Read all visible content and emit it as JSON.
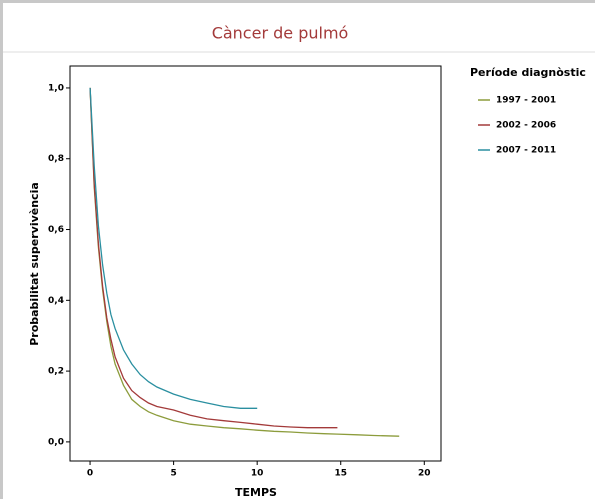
{
  "chart_data": {
    "type": "line",
    "title": "Càncer de pulmó",
    "x_label": "TEMPS",
    "y_label": "Probabilitat supervivència",
    "legend_title": "Període diagnòstic",
    "x": [
      0,
      0.25,
      0.5,
      0.75,
      1,
      1.25,
      1.5,
      2,
      2.5,
      3,
      3.5,
      4,
      5,
      6,
      7,
      8,
      9,
      10,
      11,
      12,
      13,
      14,
      14.8,
      16,
      17,
      18.5
    ],
    "series": [
      {
        "name": "1997 - 2001",
        "color": "#8c9c3c",
        "values": [
          1.0,
          0.72,
          0.55,
          0.43,
          0.34,
          0.27,
          0.22,
          0.16,
          0.12,
          0.1,
          0.085,
          0.075,
          0.06,
          0.05,
          0.045,
          0.04,
          0.037,
          0.033,
          0.03,
          0.028,
          0.025,
          0.023,
          0.022,
          0.02,
          0.018,
          0.016
        ]
      },
      {
        "name": "2002 - 2006",
        "color": "#a33a3a",
        "values": [
          1.0,
          0.73,
          0.56,
          0.44,
          0.35,
          0.29,
          0.24,
          0.18,
          0.145,
          0.125,
          0.11,
          0.1,
          0.09,
          0.075,
          0.065,
          0.06,
          0.055,
          0.05,
          0.045,
          0.042,
          0.04,
          0.04,
          0.04,
          null,
          null,
          null
        ]
      },
      {
        "name": "2007 - 2011",
        "color": "#2a8fa0",
        "values": [
          1.0,
          0.78,
          0.61,
          0.5,
          0.42,
          0.36,
          0.32,
          0.26,
          0.22,
          0.19,
          0.17,
          0.155,
          0.135,
          0.12,
          0.11,
          0.1,
          0.095,
          0.095,
          null,
          null,
          null,
          null,
          null,
          null,
          null,
          null
        ]
      }
    ],
    "xlim": [
      -1.2,
      21
    ],
    "ylim": [
      -0.054,
      1.062
    ],
    "xticks": [
      0,
      5,
      10,
      15,
      20
    ],
    "yticks": [
      {
        "value": 0,
        "label": "0,0"
      },
      {
        "value": 0.2,
        "label": "0,2"
      },
      {
        "value": 0.4,
        "label": "0,4"
      },
      {
        "value": 0.6,
        "label": "0,6"
      },
      {
        "value": 0.8,
        "label": "0,8"
      },
      {
        "value": 1,
        "label": "1,0"
      }
    ]
  }
}
